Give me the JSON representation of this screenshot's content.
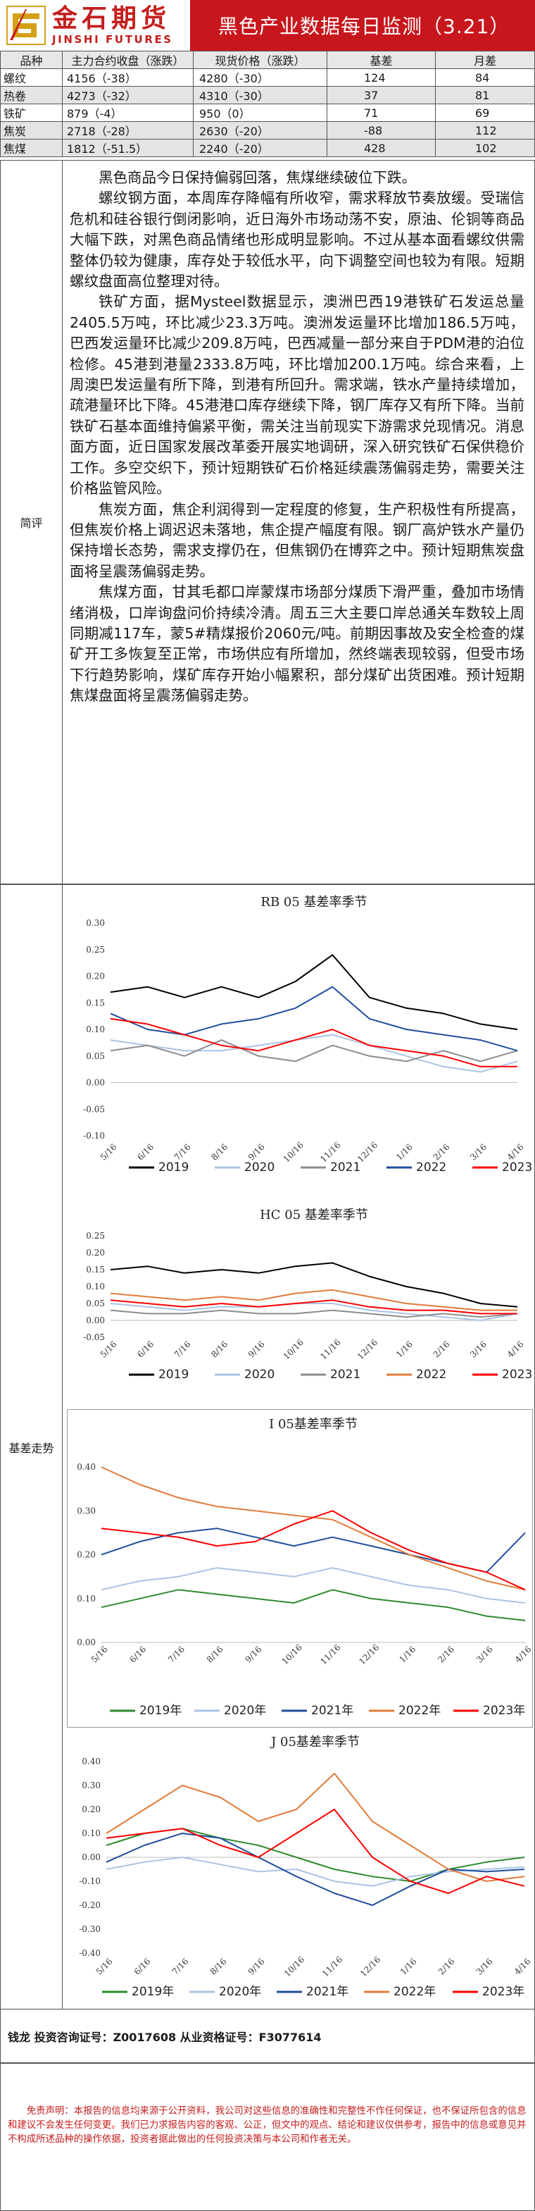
{
  "header": {
    "logo_cn": "金石期货",
    "logo_en": "JINSHI FUTURES",
    "title": "黑色产业数据每日监测（3.21）"
  },
  "price_table": {
    "columns": [
      "品种",
      "主力合约收盘（涨跌）",
      "现货价格（涨跌）",
      "基差",
      "月差"
    ],
    "rows": [
      {
        "name": "螺纹",
        "close": "4156（-38）",
        "spot": "4280（-30）",
        "basis": "124",
        "spread": "84"
      },
      {
        "name": "热卷",
        "close": "4273（-32）",
        "spot": "4310（-30）",
        "basis": "37",
        "spread": "81"
      },
      {
        "name": "铁矿",
        "close": "879（-4）",
        "spot": "950（0）",
        "basis": "71",
        "spread": "69"
      },
      {
        "name": "焦炭",
        "close": "2718（-28）",
        "spot": "2630（-20）",
        "basis": "-88",
        "spread": "112"
      },
      {
        "name": "焦煤",
        "close": "1812（-51.5）",
        "spot": "2240（-20）",
        "basis": "428",
        "spread": "102"
      }
    ]
  },
  "commentary": {
    "label": "简评",
    "paragraphs": [
      "黑色商品今日保持偏弱回落，焦煤继续破位下跌。",
      "螺纹钢方面，本周库存降幅有所收窄，需求释放节奏放缓。受瑞信危机和硅谷银行倒闭影响，近日海外市场动荡不安，原油、伦铜等商品大幅下跌，对黑色商品情绪也形成明显影响。不过从基本面看螺纹供需整体仍较为健康，库存处于较低水平，向下调整空间也较为有限。短期螺纹盘面高位整理对待。",
      "铁矿方面，据Mysteel数据显示，澳洲巴西19港铁矿石发运总量2405.5万吨，环比减少23.3万吨。澳洲发运量环比增加186.5万吨，巴西发运量环比减少209.8万吨，巴西减量一部分来自于PDM港的泊位检修。45港到港量2333.8万吨，环比增加200.1万吨。综合来看，上周澳巴发运量有所下降，到港有所回升。需求端，铁水产量持续增加，疏港量环比下降。45港港口库存继续下降，钢厂库存又有所下降。当前铁矿石基本面维持偏紧平衡，需关注当前现实下游需求兑现情况。消息面方面，近日国家发展改革委开展实地调研，深入研究铁矿石保供稳价工作。多空交织下，预计短期铁矿石价格延续震荡偏弱走势，需要关注价格监管风险。",
      "焦炭方面，焦企利润得到一定程度的修复，生产积极性有所提高，但焦炭价格上调迟迟未落地，焦企提产幅度有限。钢厂高炉铁水产量仍保持增长态势，需求支撑仍在，但焦钢仍在博弈之中。预计短期焦炭盘面将呈震荡偏弱走势。",
      "焦煤方面，甘其毛都口岸蒙煤市场部分煤质下滑严重，叠加市场情绪消极，口岸询盘问价持续冷清。周五三大主要口岸总通关车数较上周同期减117车，蒙5#精煤报价2060元/吨。前期因事故及安全检查的煤矿开工多恢复至正常，市场供应有所增加，然终端表现较弱，但受市场下行趋势影响，煤矿库存开始小幅累积，部分煤矿出货困难。预计短期焦煤盘面将呈震荡偏弱走势。"
    ]
  },
  "charts_section": {
    "label": "基差走势"
  },
  "chart_data": [
    {
      "type": "line",
      "title": "RB 05 基差率季节",
      "x_ticks": [
        "5/16",
        "6/16",
        "7/16",
        "8/16",
        "9/16",
        "10/16",
        "11/16",
        "12/16",
        "1/16",
        "2/16",
        "3/16",
        "4/16"
      ],
      "y_ticks": [
        "0.30",
        "0.25",
        "0.20",
        "0.15",
        "0.10",
        "0.05",
        "0.00",
        "-0.05",
        "-0.10"
      ],
      "ylim": [
        -0.1,
        0.3
      ],
      "series": [
        {
          "name": "2019",
          "color": "#000000",
          "values": [
            0.17,
            0.18,
            0.16,
            0.18,
            0.16,
            0.19,
            0.24,
            0.16,
            0.14,
            0.13,
            0.11,
            0.1
          ]
        },
        {
          "name": "2020",
          "color": "#a9c4e4",
          "values": [
            0.08,
            0.07,
            0.06,
            0.06,
            0.07,
            0.08,
            0.09,
            0.07,
            0.05,
            0.03,
            0.02,
            0.04
          ]
        },
        {
          "name": "2021",
          "color": "#8c8c8c",
          "values": [
            0.06,
            0.07,
            0.05,
            0.08,
            0.05,
            0.04,
            0.07,
            0.05,
            0.04,
            0.06,
            0.04,
            0.06
          ]
        },
        {
          "name": "2022",
          "color": "#1f4e9c",
          "values": [
            0.13,
            0.1,
            0.09,
            0.11,
            0.12,
            0.14,
            0.18,
            0.12,
            0.1,
            0.09,
            0.08,
            0.06
          ]
        },
        {
          "name": "2023",
          "color": "#ff0000",
          "values": [
            0.12,
            0.11,
            0.09,
            0.07,
            0.06,
            0.08,
            0.1,
            0.07,
            0.06,
            0.05,
            0.03,
            0.03
          ]
        }
      ]
    },
    {
      "type": "line",
      "title": "HC 05 基差率季节",
      "x_ticks": [
        "5/16",
        "6/16",
        "7/16",
        "8/16",
        "9/16",
        "10/16",
        "11/16",
        "12/16",
        "1/16",
        "2/16",
        "3/16",
        "4/16"
      ],
      "y_ticks": [
        "0.25",
        "0.20",
        "0.15",
        "0.10",
        "0.05",
        "0.00",
        "-0.05"
      ],
      "ylim": [
        -0.05,
        0.25
      ],
      "series": [
        {
          "name": "2019",
          "color": "#000000",
          "values": [
            0.15,
            0.16,
            0.14,
            0.15,
            0.14,
            0.16,
            0.17,
            0.13,
            0.1,
            0.08,
            0.05,
            0.04
          ]
        },
        {
          "name": "2020",
          "color": "#a9c4e4",
          "values": [
            0.05,
            0.04,
            0.03,
            0.04,
            0.04,
            0.05,
            0.05,
            0.03,
            0.02,
            0.01,
            0.0,
            0.02
          ]
        },
        {
          "name": "2021",
          "color": "#8c8c8c",
          "values": [
            0.03,
            0.02,
            0.02,
            0.03,
            0.02,
            0.02,
            0.03,
            0.02,
            0.01,
            0.02,
            0.01,
            0.02
          ]
        },
        {
          "name": "2022",
          "color": "#e07b39",
          "values": [
            0.08,
            0.07,
            0.06,
            0.07,
            0.06,
            0.08,
            0.09,
            0.07,
            0.05,
            0.04,
            0.03,
            0.03
          ]
        },
        {
          "name": "2023",
          "color": "#ff0000",
          "values": [
            0.06,
            0.05,
            0.04,
            0.05,
            0.04,
            0.05,
            0.06,
            0.04,
            0.03,
            0.03,
            0.02,
            0.02
          ]
        }
      ]
    },
    {
      "type": "line",
      "title": "I 05基差率季节",
      "x_ticks": [
        "5/16",
        "6/16",
        "7/16",
        "8/16",
        "9/16",
        "10/16",
        "11/16",
        "12/16",
        "1/16",
        "2/16",
        "3/16",
        "4/16"
      ],
      "y_ticks": [
        "0.40",
        "0.30",
        "0.20",
        "0.10",
        "0.00"
      ],
      "ylim": [
        0.0,
        0.45
      ],
      "series": [
        {
          "name": "2019年",
          "color": "#2e8b2e",
          "values": [
            0.08,
            0.1,
            0.12,
            0.11,
            0.1,
            0.09,
            0.12,
            0.1,
            0.09,
            0.08,
            0.06,
            0.05
          ]
        },
        {
          "name": "2020年",
          "color": "#a9c4e4",
          "values": [
            0.12,
            0.14,
            0.15,
            0.17,
            0.16,
            0.15,
            0.17,
            0.15,
            0.13,
            0.12,
            0.1,
            0.09
          ]
        },
        {
          "name": "2021年",
          "color": "#1f4e9c",
          "values": [
            0.2,
            0.23,
            0.25,
            0.26,
            0.24,
            0.22,
            0.24,
            0.22,
            0.2,
            0.18,
            0.16,
            0.25
          ]
        },
        {
          "name": "2022年",
          "color": "#e07b39",
          "values": [
            0.4,
            0.36,
            0.33,
            0.31,
            0.3,
            0.29,
            0.28,
            0.24,
            0.2,
            0.17,
            0.14,
            0.12
          ]
        },
        {
          "name": "2023年",
          "color": "#ff0000",
          "values": [
            0.26,
            0.25,
            0.24,
            0.22,
            0.23,
            0.27,
            0.3,
            0.25,
            0.21,
            0.18,
            0.16,
            0.12
          ]
        }
      ]
    },
    {
      "type": "line",
      "title": "J 05基差率季节",
      "x_ticks": [
        "5/16",
        "6/16",
        "7/16",
        "8/16",
        "9/16",
        "10/16",
        "11/16",
        "12/16",
        "1/16",
        "2/16",
        "3/16",
        "4/16"
      ],
      "y_ticks": [
        "0.40",
        "0.30",
        "0.20",
        "0.10",
        "0.00",
        "-0.10",
        "-0.20",
        "-0.30",
        "-0.40"
      ],
      "ylim": [
        -0.4,
        0.4
      ],
      "series": [
        {
          "name": "2019年",
          "color": "#2e8b2e",
          "values": [
            0.05,
            0.1,
            0.12,
            0.08,
            0.05,
            0.0,
            -0.05,
            -0.08,
            -0.1,
            -0.05,
            -0.02,
            0.0
          ]
        },
        {
          "name": "2020年",
          "color": "#a9c4e4",
          "values": [
            -0.05,
            -0.02,
            0.0,
            -0.03,
            -0.06,
            -0.05,
            -0.1,
            -0.12,
            -0.08,
            -0.06,
            -0.05,
            -0.04
          ]
        },
        {
          "name": "2021年",
          "color": "#1f4e9c",
          "values": [
            -0.02,
            0.05,
            0.1,
            0.08,
            0.0,
            -0.08,
            -0.15,
            -0.2,
            -0.12,
            -0.05,
            -0.06,
            -0.05
          ]
        },
        {
          "name": "2022年",
          "color": "#e07b39",
          "values": [
            0.1,
            0.2,
            0.3,
            0.25,
            0.15,
            0.2,
            0.35,
            0.15,
            0.05,
            -0.05,
            -0.1,
            -0.08
          ]
        },
        {
          "name": "2023年",
          "color": "#ff0000",
          "values": [
            0.08,
            0.1,
            0.12,
            0.05,
            0.0,
            0.1,
            0.2,
            0.0,
            -0.1,
            -0.15,
            -0.08,
            -0.12
          ]
        }
      ]
    }
  ],
  "author": {
    "line": "钱龙 投资咨询证号：Z0017608 从业资格证号：F3077614"
  },
  "disclaimer": {
    "text": "免责声明：本报告的信息均来源于公开资料，我公司对这些信息的准确性和完整性不作任何保证，也不保证所包含的信息和建议不会发生任何变更。我们已力求报告内容的客观、公正，但文中的观点、结论和建议仅供参考，报告中的信息或意见并不构成所述品种的操作依据，投资者据此做出的任何投资决策与本公司和作者无关。"
  },
  "colors": {
    "brand_red": "#c8161d",
    "table_header_bg": "#e7e7e7"
  }
}
